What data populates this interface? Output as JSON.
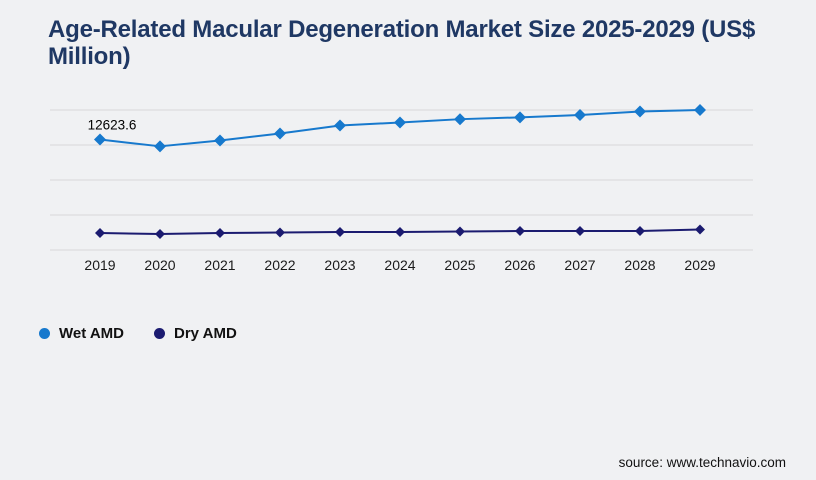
{
  "page": {
    "background": "#f0f1f3",
    "gridline_color": "#d8d8da"
  },
  "header": {
    "title": "Age-Related Macular Degeneration Market Size 2025-2029 (US$ Million)",
    "title_color": "#1f3864"
  },
  "chart_data": {
    "type": "line",
    "title": "Age-Related Macular Degeneration Market Size 2025-2029 (US$ Million)",
    "x": [
      "2019",
      "2020",
      "2021",
      "2022",
      "2023",
      "2024",
      "2025",
      "2026",
      "2027",
      "2028",
      "2029"
    ],
    "xlabel": "",
    "ylabel": "",
    "ylim": [
      0,
      16000
    ],
    "gridline_step": 4000,
    "grid": true,
    "y_axis_labels_shown": false,
    "legend_position": "bottom-left",
    "series": [
      {
        "name": "Wet AMD",
        "color": "#1779cd",
        "marker": "diamond",
        "values": [
          12623.6,
          11850,
          12520,
          13320,
          14230,
          14570,
          14950,
          15160,
          15430,
          15830,
          16000
        ]
      },
      {
        "name": "Dry AMD",
        "color": "#1b1b70",
        "marker": "diamond",
        "values": [
          1940,
          1830,
          1940,
          2000,
          2060,
          2060,
          2110,
          2170,
          2170,
          2170,
          2340
        ]
      }
    ],
    "data_labels": [
      {
        "series": "Wet AMD",
        "x": "2019",
        "text": "12623.6"
      }
    ]
  },
  "legend": {
    "items": [
      {
        "label": "Wet AMD",
        "color": "#1779cd"
      },
      {
        "label": "Dry AMD",
        "color": "#1b1b70"
      }
    ]
  },
  "footer": {
    "source": "source: www.technavio.com"
  }
}
